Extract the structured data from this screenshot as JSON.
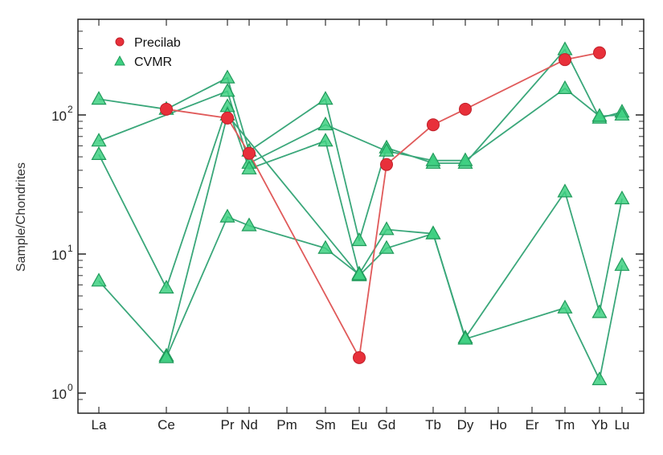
{
  "chart_data": {
    "type": "line",
    "ylabel": "Sample/Chondrites",
    "xlabel": "",
    "yscale": "log",
    "ylim": [
      0.85,
      420
    ],
    "y_ticks": [
      {
        "base": "10",
        "exp": "0"
      },
      {
        "base": "10",
        "exp": "1"
      },
      {
        "base": "10",
        "exp": "2"
      }
    ],
    "categories": [
      "La",
      "Ce",
      "Pr",
      "Nd",
      "Pm",
      "Sm",
      "Eu",
      "Gd",
      "Tb",
      "Dy",
      "Ho",
      "Er",
      "Tm",
      "Yb",
      "Lu"
    ],
    "legend_position": "top-left",
    "groups": [
      {
        "name": "Precilab",
        "marker": "circle",
        "color": "#e8303a",
        "line_color": "#e05a5a"
      },
      {
        "name": "CVMR",
        "marker": "triangle",
        "color": "#3ed081",
        "line_color": "#3aa77a"
      }
    ],
    "series": [
      {
        "group": "Precilab",
        "values": [
          null,
          110,
          95,
          53,
          null,
          null,
          1.8,
          44,
          85,
          110,
          null,
          null,
          250,
          280,
          null
        ]
      },
      {
        "group": "CVMR",
        "values": [
          130,
          110,
          185,
          55,
          null,
          130,
          12.5,
          58,
          45,
          45,
          null,
          null,
          295,
          95,
          105
        ]
      },
      {
        "group": "CVMR",
        "values": [
          65,
          null,
          148,
          45,
          null,
          85,
          null,
          55,
          47,
          47,
          null,
          null,
          155,
          98,
          100
        ]
      },
      {
        "group": "CVMR",
        "values": [
          52,
          5.7,
          115,
          41,
          null,
          65,
          7.2,
          15,
          14,
          2.5,
          null,
          null,
          28,
          3.8,
          25
        ]
      },
      {
        "group": "CVMR",
        "values": [
          6.4,
          1.85,
          100,
          null,
          null,
          null,
          7.0,
          11,
          14,
          2.45,
          null,
          null,
          4.1,
          1.25,
          8.3
        ]
      },
      {
        "group": "CVMR",
        "values": [
          null,
          1.8,
          18.5,
          16,
          null,
          11,
          7.1,
          null,
          null,
          null,
          null,
          null,
          null,
          null,
          null
        ]
      }
    ]
  }
}
